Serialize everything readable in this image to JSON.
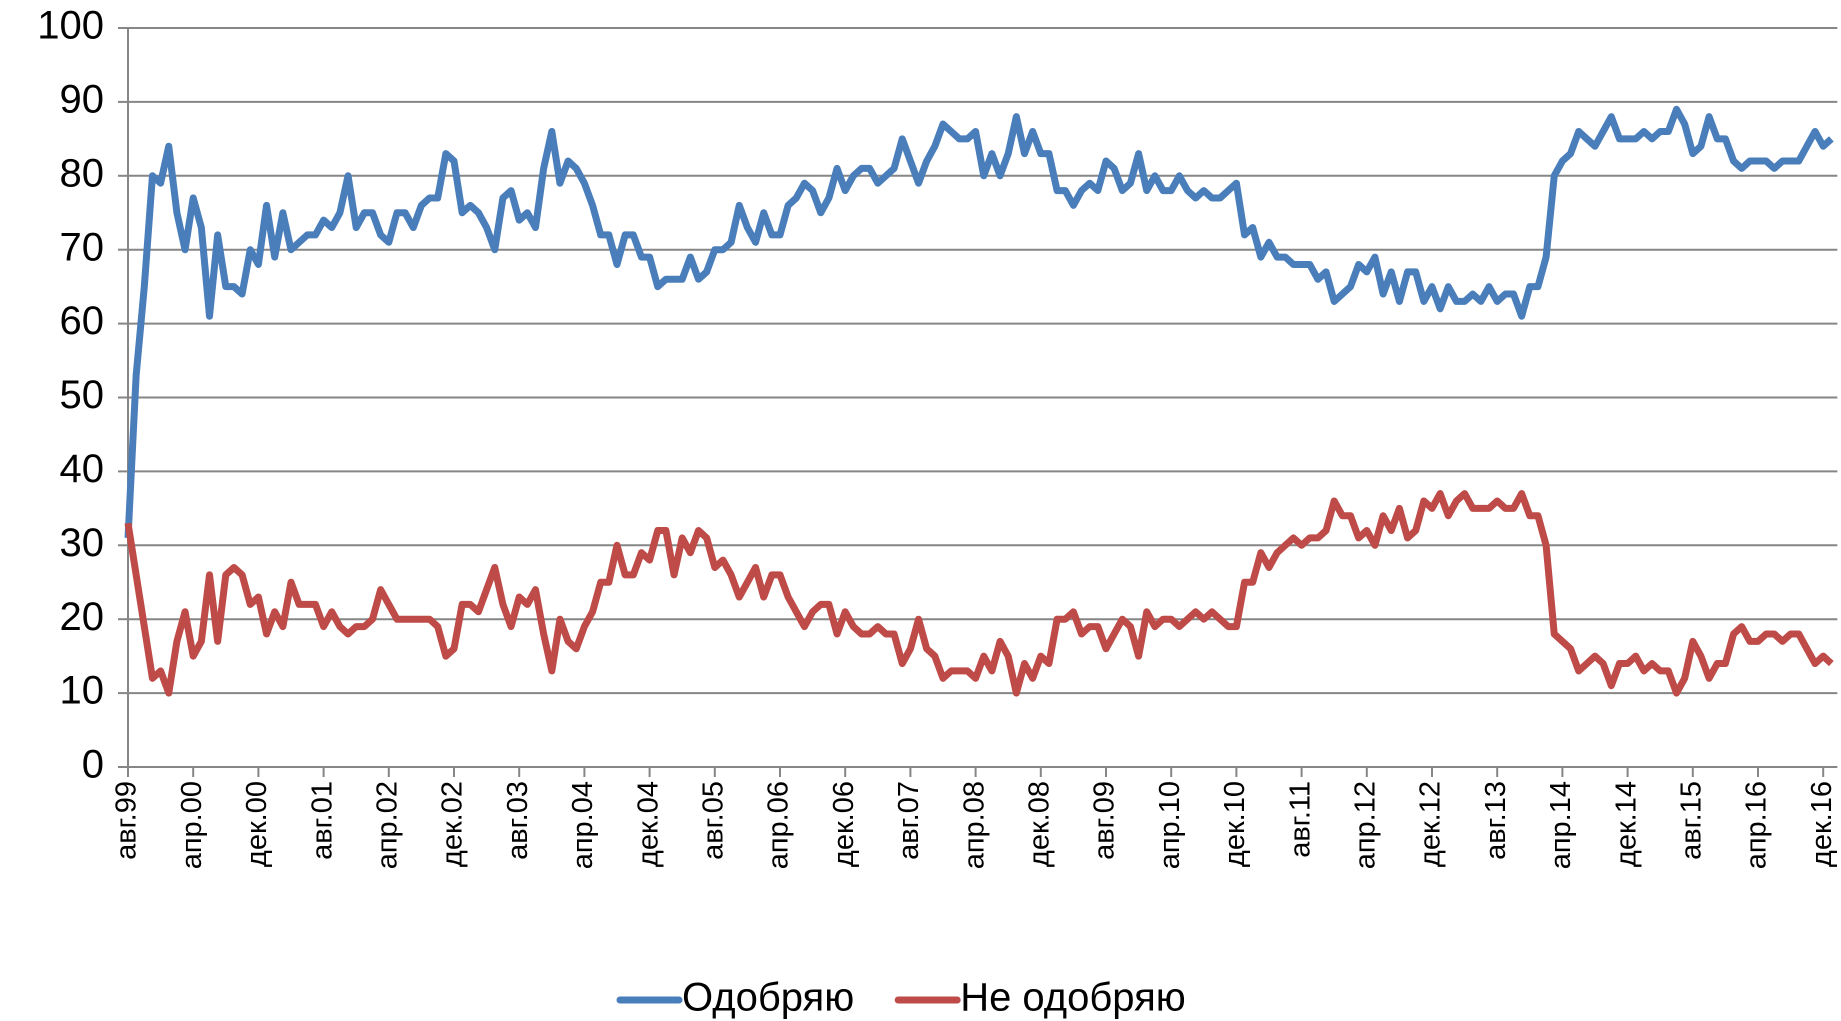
{
  "chart_data": {
    "type": "line",
    "categories": [
      "авг.99",
      null,
      null,
      null,
      null,
      null,
      null,
      null,
      "апр.00",
      null,
      null,
      null,
      null,
      null,
      null,
      null,
      "дек.00",
      null,
      null,
      null,
      null,
      null,
      null,
      null,
      "авг.01",
      null,
      null,
      null,
      null,
      null,
      null,
      null,
      "апр.02",
      null,
      null,
      null,
      null,
      null,
      null,
      null,
      "дек.02",
      null,
      null,
      null,
      null,
      null,
      null,
      null,
      "авг.03",
      null,
      null,
      null,
      null,
      null,
      null,
      null,
      "апр.04",
      null,
      null,
      null,
      null,
      null,
      null,
      null,
      "дек.04",
      null,
      null,
      null,
      null,
      null,
      null,
      null,
      "авг.05",
      null,
      null,
      null,
      null,
      null,
      null,
      null,
      "апр.06",
      null,
      null,
      null,
      null,
      null,
      null,
      null,
      "дек.06",
      null,
      null,
      null,
      null,
      null,
      null,
      null,
      "авг.07",
      null,
      null,
      null,
      null,
      null,
      null,
      null,
      "апр.08",
      null,
      null,
      null,
      null,
      null,
      null,
      null,
      "дек.08",
      null,
      null,
      null,
      null,
      null,
      null,
      null,
      "авг.09",
      null,
      null,
      null,
      null,
      null,
      null,
      null,
      "апр.10",
      null,
      null,
      null,
      null,
      null,
      null,
      null,
      "дек.10",
      null,
      null,
      null,
      null,
      null,
      null,
      null,
      "авг.11",
      null,
      null,
      null,
      null,
      null,
      null,
      null,
      "апр.12",
      null,
      null,
      null,
      null,
      null,
      null,
      null,
      "дек.12",
      null,
      null,
      null,
      null,
      null,
      null,
      null,
      "авг.13",
      null,
      null,
      null,
      null,
      null,
      null,
      null,
      "апр.14",
      null,
      null,
      null,
      null,
      null,
      null,
      null,
      "дек.14",
      null,
      null,
      null,
      null,
      null,
      null,
      null,
      "авг.15",
      null,
      null,
      null,
      null,
      null,
      null,
      null,
      "апр.16",
      null,
      null,
      null,
      null,
      null,
      null,
      null,
      "дек.16",
      null
    ],
    "series": [
      {
        "name": "Одобряю",
        "color": "#4a7ebb",
        "values": [
          31,
          53,
          65,
          80,
          79,
          84,
          75,
          70,
          77,
          73,
          61,
          72,
          65,
          65,
          64,
          70,
          68,
          76,
          69,
          75,
          70,
          71,
          72,
          72,
          74,
          73,
          75,
          80,
          73,
          75,
          75,
          72,
          71,
          75,
          75,
          73,
          76,
          77,
          77,
          83,
          82,
          75,
          76,
          75,
          73,
          70,
          77,
          78,
          74,
          75,
          73,
          81,
          86,
          79,
          82,
          81,
          79,
          76,
          72,
          72,
          68,
          72,
          72,
          69,
          69,
          65,
          66,
          66,
          66,
          69,
          66,
          67,
          70,
          70,
          71,
          76,
          73,
          71,
          75,
          72,
          72,
          76,
          77,
          79,
          78,
          75,
          77,
          81,
          78,
          80,
          81,
          81,
          79,
          80,
          81,
          85,
          82,
          79,
          82,
          84,
          87,
          86,
          85,
          85,
          86,
          80,
          83,
          80,
          83,
          88,
          83,
          86,
          83,
          83,
          78,
          78,
          76,
          78,
          79,
          78,
          82,
          81,
          78,
          79,
          83,
          78,
          80,
          78,
          78,
          80,
          78,
          77,
          78,
          77,
          77,
          78,
          79,
          72,
          73,
          69,
          71,
          69,
          69,
          68,
          68,
          68,
          66,
          67,
          63,
          64,
          65,
          68,
          67,
          69,
          64,
          67,
          63,
          67,
          67,
          63,
          65,
          62,
          65,
          63,
          63,
          64,
          63,
          65,
          63,
          64,
          64,
          61,
          65,
          65,
          69,
          80,
          82,
          83,
          86,
          85,
          84,
          86,
          88,
          85,
          85,
          85,
          86,
          85,
          86,
          86,
          89,
          87,
          83,
          84,
          88,
          85,
          85,
          82,
          81,
          82,
          82,
          82,
          81,
          82,
          82,
          82,
          84,
          86,
          84,
          85
        ]
      },
      {
        "name": "Не одобряю",
        "color": "#be4b48",
        "values": [
          33,
          26,
          19,
          12,
          13,
          10,
          17,
          21,
          15,
          17,
          26,
          17,
          26,
          27,
          26,
          22,
          23,
          18,
          21,
          19,
          25,
          22,
          22,
          22,
          19,
          21,
          19,
          18,
          19,
          19,
          20,
          24,
          22,
          20,
          20,
          20,
          20,
          20,
          19,
          15,
          16,
          22,
          22,
          21,
          24,
          27,
          22,
          19,
          23,
          22,
          24,
          18,
          13,
          20,
          17,
          16,
          19,
          21,
          25,
          25,
          30,
          26,
          26,
          29,
          28,
          32,
          32,
          26,
          31,
          29,
          32,
          31,
          27,
          28,
          26,
          23,
          25,
          27,
          23,
          26,
          26,
          23,
          21,
          19,
          21,
          22,
          22,
          18,
          21,
          19,
          18,
          18,
          19,
          18,
          18,
          14,
          16,
          20,
          16,
          15,
          12,
          13,
          13,
          13,
          12,
          15,
          13,
          17,
          15,
          10,
          14,
          12,
          15,
          14,
          20,
          20,
          21,
          18,
          19,
          19,
          16,
          18,
          20,
          19,
          15,
          21,
          19,
          20,
          20,
          19,
          20,
          21,
          20,
          21,
          20,
          19,
          19,
          25,
          25,
          29,
          27,
          29,
          30,
          31,
          30,
          31,
          31,
          32,
          36,
          34,
          34,
          31,
          32,
          30,
          34,
          32,
          35,
          31,
          32,
          36,
          35,
          37,
          34,
          36,
          37,
          35,
          35,
          35,
          36,
          35,
          35,
          37,
          34,
          34,
          30,
          18,
          17,
          16,
          13,
          14,
          15,
          14,
          11,
          14,
          14,
          15,
          13,
          14,
          13,
          13,
          10,
          12,
          17,
          15,
          12,
          14,
          14,
          18,
          19,
          17,
          17,
          18,
          18,
          17,
          18,
          18,
          16,
          14,
          15,
          14
        ]
      }
    ],
    "ylim": [
      0,
      100
    ],
    "yticks": [
      0,
      10,
      20,
      30,
      40,
      50,
      60,
      70,
      80,
      90,
      100
    ],
    "grid": true,
    "legend": "bottom"
  }
}
